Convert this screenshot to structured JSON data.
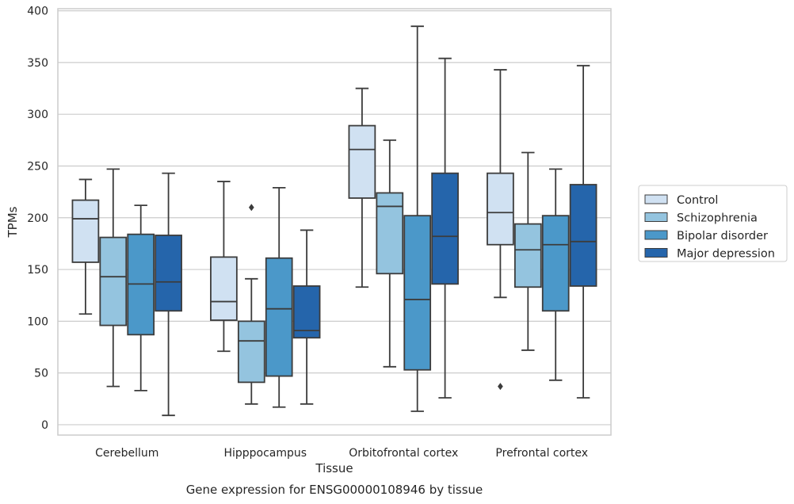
{
  "chart_data": {
    "type": "boxplot",
    "caption": "Gene expression for ENSG00000108946 by tissue",
    "xlabel": "Tissue",
    "ylabel": "TPMs",
    "ylim": [
      -10,
      402
    ],
    "yticks": [
      0,
      50,
      100,
      150,
      200,
      250,
      300,
      350,
      400
    ],
    "grid": true,
    "legend_position": "right",
    "categories": [
      "Cerebellum",
      "Hipppocampus",
      "Orbitofrontal cortex",
      "Prefrontal cortex"
    ],
    "series": [
      {
        "name": "Control",
        "color": "#d0e1f2",
        "boxes": [
          {
            "whisker_low": 107,
            "q1": 157,
            "median": 199,
            "q3": 217,
            "whisker_high": 237,
            "outliers": []
          },
          {
            "whisker_low": 71,
            "q1": 101,
            "median": 119,
            "q3": 162,
            "whisker_high": 235,
            "outliers": []
          },
          {
            "whisker_low": 133,
            "q1": 219,
            "median": 266,
            "q3": 289,
            "whisker_high": 325,
            "outliers": []
          },
          {
            "whisker_low": 123,
            "q1": 174,
            "median": 205,
            "q3": 243,
            "whisker_high": 343,
            "outliers": [
              37
            ]
          }
        ]
      },
      {
        "name": "Schizophrenia",
        "color": "#94c4df",
        "boxes": [
          {
            "whisker_low": 37,
            "q1": 96,
            "median": 143,
            "q3": 181,
            "whisker_high": 247,
            "outliers": []
          },
          {
            "whisker_low": 20,
            "q1": 41,
            "median": 81,
            "q3": 100,
            "whisker_high": 141,
            "outliers": [
              210
            ]
          },
          {
            "whisker_low": 56,
            "q1": 146,
            "median": 211,
            "q3": 224,
            "whisker_high": 275,
            "outliers": []
          },
          {
            "whisker_low": 72,
            "q1": 133,
            "median": 169,
            "q3": 194,
            "whisker_high": 263,
            "outliers": []
          }
        ]
      },
      {
        "name": "Bipolar disorder",
        "color": "#4b98c9",
        "boxes": [
          {
            "whisker_low": 33,
            "q1": 87,
            "median": 136,
            "q3": 184,
            "whisker_high": 212,
            "outliers": []
          },
          {
            "whisker_low": 17,
            "q1": 47,
            "median": 112,
            "q3": 161,
            "whisker_high": 229,
            "outliers": []
          },
          {
            "whisker_low": 13,
            "q1": 53,
            "median": 121,
            "q3": 202,
            "whisker_high": 385,
            "outliers": []
          },
          {
            "whisker_low": 43,
            "q1": 110,
            "median": 174,
            "q3": 202,
            "whisker_high": 247,
            "outliers": []
          }
        ]
      },
      {
        "name": "Major depression",
        "color": "#2565ab",
        "boxes": [
          {
            "whisker_low": 9,
            "q1": 110,
            "median": 138,
            "q3": 183,
            "whisker_high": 243,
            "outliers": []
          },
          {
            "whisker_low": 20,
            "q1": 84,
            "median": 91,
            "q3": 134,
            "whisker_high": 188,
            "outliers": []
          },
          {
            "whisker_low": 26,
            "q1": 136,
            "median": 182,
            "q3": 243,
            "whisker_high": 354,
            "outliers": []
          },
          {
            "whisker_low": 26,
            "q1": 134,
            "median": 177,
            "q3": 232,
            "whisker_high": 347,
            "outliers": []
          }
        ]
      }
    ]
  }
}
